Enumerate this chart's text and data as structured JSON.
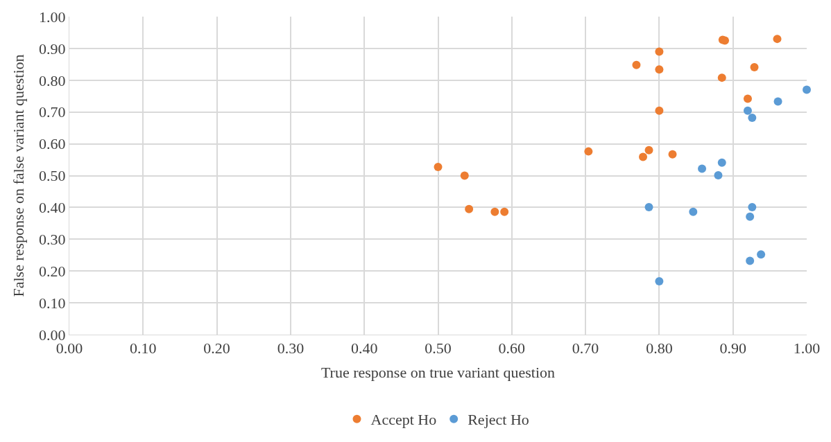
{
  "chart_data": {
    "type": "scatter",
    "xlabel": "True response on true variant question",
    "ylabel": "False response on false variant question",
    "xlim": [
      0,
      1
    ],
    "ylim": [
      0,
      1
    ],
    "xticks": [
      {
        "value": 0,
        "label": "0.00"
      },
      {
        "value": 0.1,
        "label": "0.10"
      },
      {
        "value": 0.2,
        "label": "0.20"
      },
      {
        "value": 0.3,
        "label": "0.30"
      },
      {
        "value": 0.4,
        "label": "0.40"
      },
      {
        "value": 0.5,
        "label": "0.50"
      },
      {
        "value": 0.6,
        "label": "0.60"
      },
      {
        "value": 0.7,
        "label": "0.70"
      },
      {
        "value": 0.8,
        "label": "0.80"
      },
      {
        "value": 0.9,
        "label": "0.90"
      },
      {
        "value": 1,
        "label": "1.00"
      }
    ],
    "yticks": [
      {
        "value": 0,
        "label": "0.00"
      },
      {
        "value": 0.1,
        "label": "0.10"
      },
      {
        "value": 0.2,
        "label": "0.20"
      },
      {
        "value": 0.3,
        "label": "0.30"
      },
      {
        "value": 0.4,
        "label": "0.40"
      },
      {
        "value": 0.5,
        "label": "0.50"
      },
      {
        "value": 0.6,
        "label": "0.60"
      },
      {
        "value": 0.7,
        "label": "0.70"
      },
      {
        "value": 0.8,
        "label": "0.80"
      },
      {
        "value": 0.9,
        "label": "0.90"
      },
      {
        "value": 1,
        "label": "1.00"
      }
    ],
    "grid": true,
    "legend": "bottom",
    "marker": "circle",
    "series": [
      {
        "name": "Accept Ho",
        "color": "#ed7d31",
        "x": [
          0.5,
          0.536,
          0.542,
          0.577,
          0.59,
          0.704,
          0.778,
          0.786,
          0.818,
          0.769,
          0.8,
          0.8,
          0.8,
          0.885,
          0.886,
          0.889,
          0.92,
          0.929,
          0.96
        ],
        "values": [
          0.527,
          0.5,
          0.395,
          0.386,
          0.386,
          0.576,
          0.559,
          0.58,
          0.567,
          0.848,
          0.89,
          0.834,
          0.704,
          0.808,
          0.927,
          0.925,
          0.742,
          0.841,
          0.93
        ]
      },
      {
        "name": "Reject Ho",
        "color": "#5b9bd5",
        "x": [
          1.0,
          0.961,
          0.92,
          0.926,
          0.858,
          0.885,
          0.88,
          0.786,
          0.846,
          0.926,
          0.923,
          0.938,
          0.923,
          0.8
        ],
        "values": [
          0.77,
          0.733,
          0.704,
          0.682,
          0.522,
          0.541,
          0.501,
          0.401,
          0.386,
          0.401,
          0.371,
          0.252,
          0.232,
          0.168
        ]
      }
    ]
  }
}
